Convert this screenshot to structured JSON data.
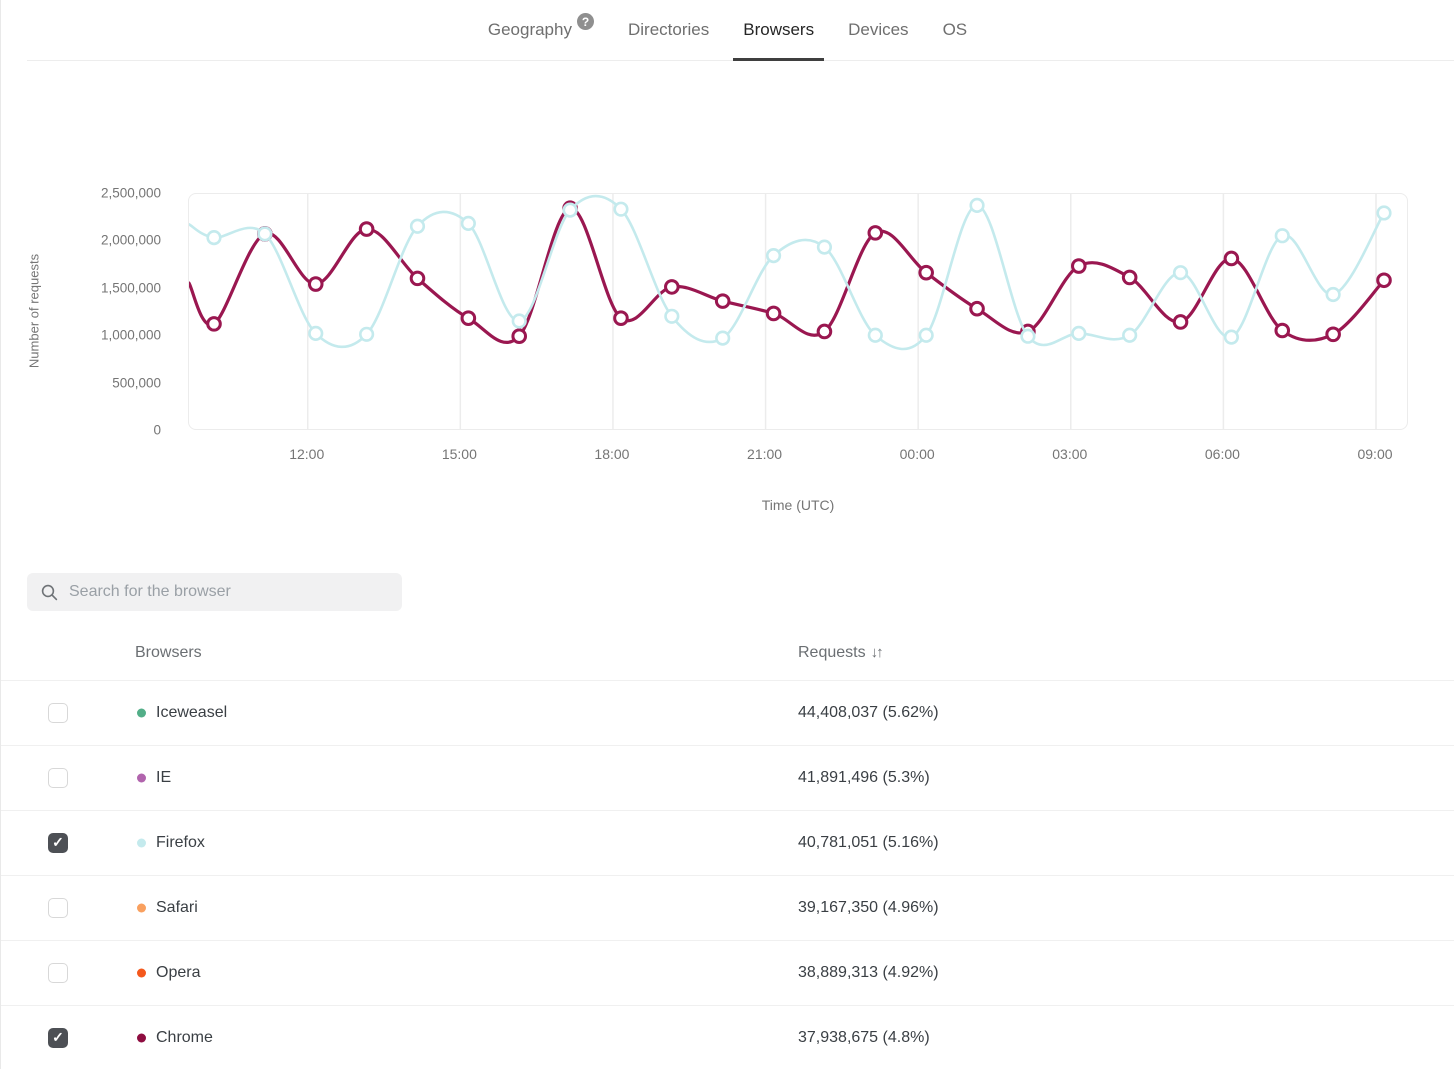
{
  "tabs": [
    {
      "label": "Geography",
      "active": false,
      "has_help": true,
      "help_glyph": "?"
    },
    {
      "label": "Directories",
      "active": false
    },
    {
      "label": "Browsers",
      "active": true
    },
    {
      "label": "Devices",
      "active": false
    },
    {
      "label": "OS",
      "active": false
    }
  ],
  "chart_data": {
    "type": "line",
    "title": "",
    "ylabel": "Number of requests",
    "xlabel": "Time (UTC)",
    "ylim": [
      0,
      2500000
    ],
    "y_max": 2500000,
    "y_ticks": [
      "2,500,000",
      "2,000,000",
      "1,500,000",
      "1,000,000",
      "500,000",
      "0"
    ],
    "x_ticks": [
      "12:00",
      "15:00",
      "18:00",
      "21:00",
      "00:00",
      "03:00",
      "06:00",
      "09:00"
    ],
    "grid": "vertical-only",
    "legend_position": "none",
    "x": [
      "10:00",
      "11:00",
      "12:00",
      "13:00",
      "14:00",
      "15:00",
      "16:00",
      "17:00",
      "18:00",
      "19:00",
      "20:00",
      "21:00",
      "22:00",
      "23:00",
      "00:00",
      "01:00",
      "02:00",
      "03:00",
      "04:00",
      "05:00",
      "06:00",
      "07:00",
      "08:00",
      "09:00"
    ],
    "series": [
      {
        "name": "Chrome",
        "color": "#9a1750",
        "lead_in": 1560000,
        "values": [
          1130000,
          2080000,
          1550000,
          2130000,
          1610000,
          1190000,
          1000000,
          2350000,
          1190000,
          1520000,
          1370000,
          1240000,
          1050000,
          2090000,
          1670000,
          1290000,
          1050000,
          1740000,
          1620000,
          1150000,
          1820000,
          1060000,
          1020000,
          1590000
        ]
      },
      {
        "name": "Firefox",
        "color": "#c4eaed",
        "lead_in": 2180000,
        "values": [
          2040000,
          2080000,
          1030000,
          1020000,
          2160000,
          2190000,
          1160000,
          2330000,
          2340000,
          1210000,
          980000,
          1850000,
          1940000,
          1010000,
          1010000,
          2380000,
          1000000,
          1030000,
          1010000,
          1670000,
          990000,
          2060000,
          1440000,
          2300000
        ]
      }
    ]
  },
  "search": {
    "placeholder": "Search for the browser"
  },
  "table": {
    "columns": {
      "browsers": "Browsers",
      "requests": "Requests",
      "sort_icon": "↓↑"
    },
    "rows": [
      {
        "name": "Iceweasel",
        "dot_color": "#52ae88",
        "checked": false,
        "requests": "44,408,037 (5.62%)"
      },
      {
        "name": "IE",
        "dot_color": "#b164ad",
        "checked": false,
        "requests": "41,891,496 (5.3%)"
      },
      {
        "name": "Firefox",
        "dot_color": "#c4eaed",
        "checked": true,
        "requests": "40,781,051 (5.16%)"
      },
      {
        "name": "Safari",
        "dot_color": "#f9a05f",
        "checked": false,
        "requests": "39,167,350 (4.96%)"
      },
      {
        "name": "Opera",
        "dot_color": "#f4581c",
        "checked": false,
        "requests": "38,889,313 (4.92%)"
      },
      {
        "name": "Chrome",
        "dot_color": "#8e0d40",
        "checked": true,
        "requests": "37,938,675 (4.8%)"
      }
    ]
  }
}
